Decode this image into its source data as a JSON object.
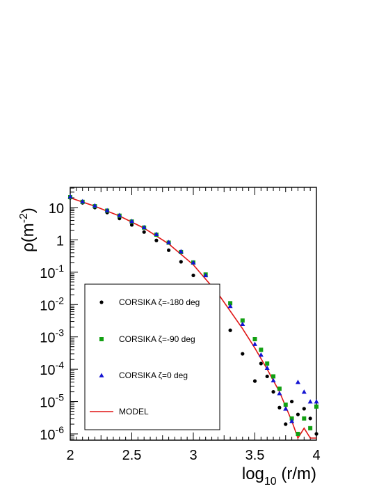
{
  "chart_data": {
    "type": "scatter",
    "xlabel": "log10 (r/m)",
    "ylabel": "ρ(m-2)",
    "xlim": [
      2,
      4
    ],
    "ylim": [
      6e-07,
      30
    ],
    "yscale": "log",
    "x_ticks": [
      "2",
      "2.5",
      "3",
      "3.5",
      "4"
    ],
    "y_ticks": [
      {
        "base": "10",
        "exp": "-6",
        "value": 1e-06
      },
      {
        "base": "10",
        "exp": "-5",
        "value": 1e-05
      },
      {
        "base": "10",
        "exp": "-4",
        "value": 0.0001
      },
      {
        "base": "10",
        "exp": "-3",
        "value": 0.001
      },
      {
        "base": "10",
        "exp": "-2",
        "value": 0.01
      },
      {
        "base": "10",
        "exp": "-1",
        "value": 0.1
      },
      {
        "base": "1",
        "exp": "",
        "value": 1
      },
      {
        "base": "10",
        "exp": "",
        "value": 10
      }
    ],
    "grid": false,
    "legend_position": "lower-left",
    "colors": {
      "circle": "#000000",
      "square": "#12a012",
      "triangle": "#1414d2",
      "model": "#e01414"
    },
    "series": [
      {
        "name": "CORSIKA ζ=-180 deg",
        "marker": "circle",
        "x": [
          2.0,
          2.1,
          2.2,
          2.3,
          2.4,
          2.5,
          2.6,
          2.7,
          2.8,
          2.9,
          3.0,
          3.1,
          3.2,
          3.3,
          3.4,
          3.5,
          3.55,
          3.6,
          3.65,
          3.7,
          3.75,
          3.8,
          3.85,
          3.9,
          3.95,
          4.0
        ],
        "y": [
          20,
          14,
          10,
          7,
          4.6,
          2.9,
          1.75,
          0.96,
          0.48,
          0.21,
          0.08,
          0.026,
          0.0072,
          0.0016,
          0.0003,
          4.3e-05,
          0.00015,
          6e-05,
          2e-05,
          6.5e-06,
          2e-06,
          1e-05,
          4e-06,
          6e-06,
          3e-06,
          1e-06
        ]
      },
      {
        "name": "CORSIKA ζ=-90 deg",
        "marker": "square",
        "x": [
          2.0,
          2.1,
          2.2,
          2.3,
          2.4,
          2.5,
          2.6,
          2.7,
          2.8,
          2.9,
          3.0,
          3.1,
          3.2,
          3.3,
          3.4,
          3.5,
          3.55,
          3.6,
          3.65,
          3.7,
          3.75,
          3.8,
          3.85,
          3.9,
          3.95,
          4.0
        ],
        "y": [
          21,
          15,
          11,
          8,
          5.6,
          3.7,
          2.4,
          1.45,
          0.82,
          0.42,
          0.2,
          0.085,
          0.032,
          0.011,
          0.0032,
          0.00085,
          0.0004,
          0.00015,
          6e-05,
          2.5e-05,
          8e-06,
          3e-06,
          1e-06,
          3e-06,
          1.5e-06,
          7e-06
        ]
      },
      {
        "name": "CORSIKA ζ=0 deg",
        "marker": "triangle",
        "x": [
          2.0,
          2.1,
          2.2,
          2.3,
          2.4,
          2.5,
          2.6,
          2.7,
          2.8,
          2.9,
          3.0,
          3.1,
          3.2,
          3.3,
          3.4,
          3.5,
          3.55,
          3.6,
          3.65,
          3.7,
          3.75,
          3.8,
          3.85,
          3.9,
          3.95,
          4.0
        ],
        "y": [
          22,
          15.5,
          11.5,
          8.2,
          5.8,
          3.8,
          2.45,
          1.5,
          0.85,
          0.44,
          0.2,
          0.08,
          0.028,
          0.009,
          0.0025,
          0.0006,
          0.00028,
          0.00011,
          4.5e-05,
          1.8e-05,
          6e-06,
          2.5e-06,
          4e-05,
          2e-05,
          1e-05,
          1e-05
        ]
      },
      {
        "name": "MODEL",
        "marker": "line",
        "x": [
          2.0,
          2.2,
          2.4,
          2.6,
          2.8,
          3.0,
          3.2,
          3.4,
          3.5,
          3.6,
          3.7,
          3.8,
          3.85,
          3.9,
          3.95,
          4.0
        ],
        "y": [
          20,
          11,
          5.5,
          2.3,
          0.75,
          0.17,
          0.022,
          0.0018,
          0.00045,
          0.0001,
          2e-05,
          2.5e-06,
          7e-07,
          1.5e-06,
          5e-07,
          6e-07
        ]
      }
    ]
  }
}
